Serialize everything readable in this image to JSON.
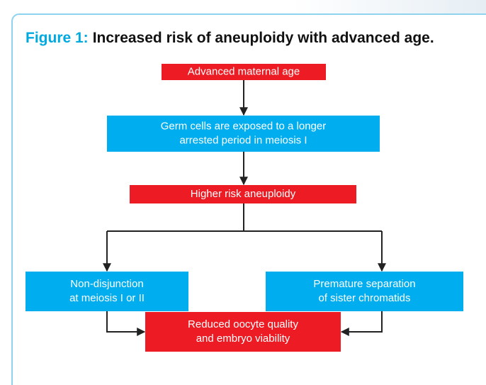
{
  "header": {
    "label": "Figure 1:",
    "title": "Increased risk of aneuploidy with advanced age."
  },
  "nodes": [
    {
      "lines": [
        "Advanced maternal age"
      ]
    },
    {
      "lines": [
        "Germ cells are exposed to a longer",
        "arrested period in meiosis I"
      ]
    },
    {
      "lines": [
        "Higher risk aneuploidy"
      ]
    },
    {
      "lines": [
        "Non-disjunction",
        "at meiosis I or II"
      ]
    },
    {
      "lines": [
        "Premature separation",
        "of sister chromatids"
      ]
    },
    {
      "lines": [
        "Reduced oocyte quality",
        "and embryo viability"
      ]
    }
  ]
}
